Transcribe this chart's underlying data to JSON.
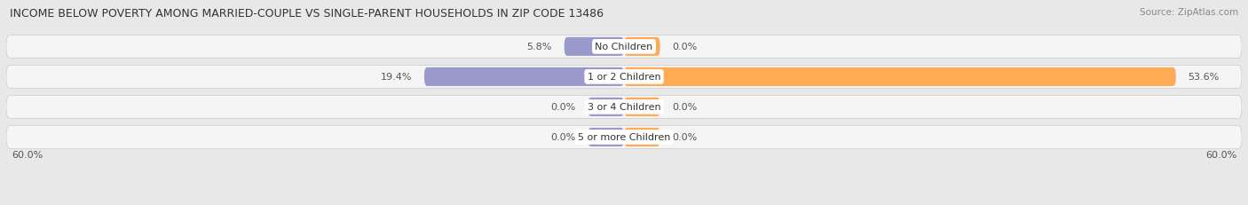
{
  "title": "INCOME BELOW POVERTY AMONG MARRIED-COUPLE VS SINGLE-PARENT HOUSEHOLDS IN ZIP CODE 13486",
  "source": "Source: ZipAtlas.com",
  "categories": [
    "No Children",
    "1 or 2 Children",
    "3 or 4 Children",
    "5 or more Children"
  ],
  "married_values": [
    5.8,
    19.4,
    0.0,
    0.0
  ],
  "single_values": [
    0.0,
    53.6,
    0.0,
    0.0
  ],
  "married_color": "#9999cc",
  "single_color": "#ffaa55",
  "axis_max": 60.0,
  "bar_height": 0.62,
  "bg_color": "#e8e8e8",
  "row_bg_color": "#f5f5f5",
  "title_fontsize": 9,
  "label_fontsize": 8,
  "source_fontsize": 7.5,
  "nub_size": 3.5
}
